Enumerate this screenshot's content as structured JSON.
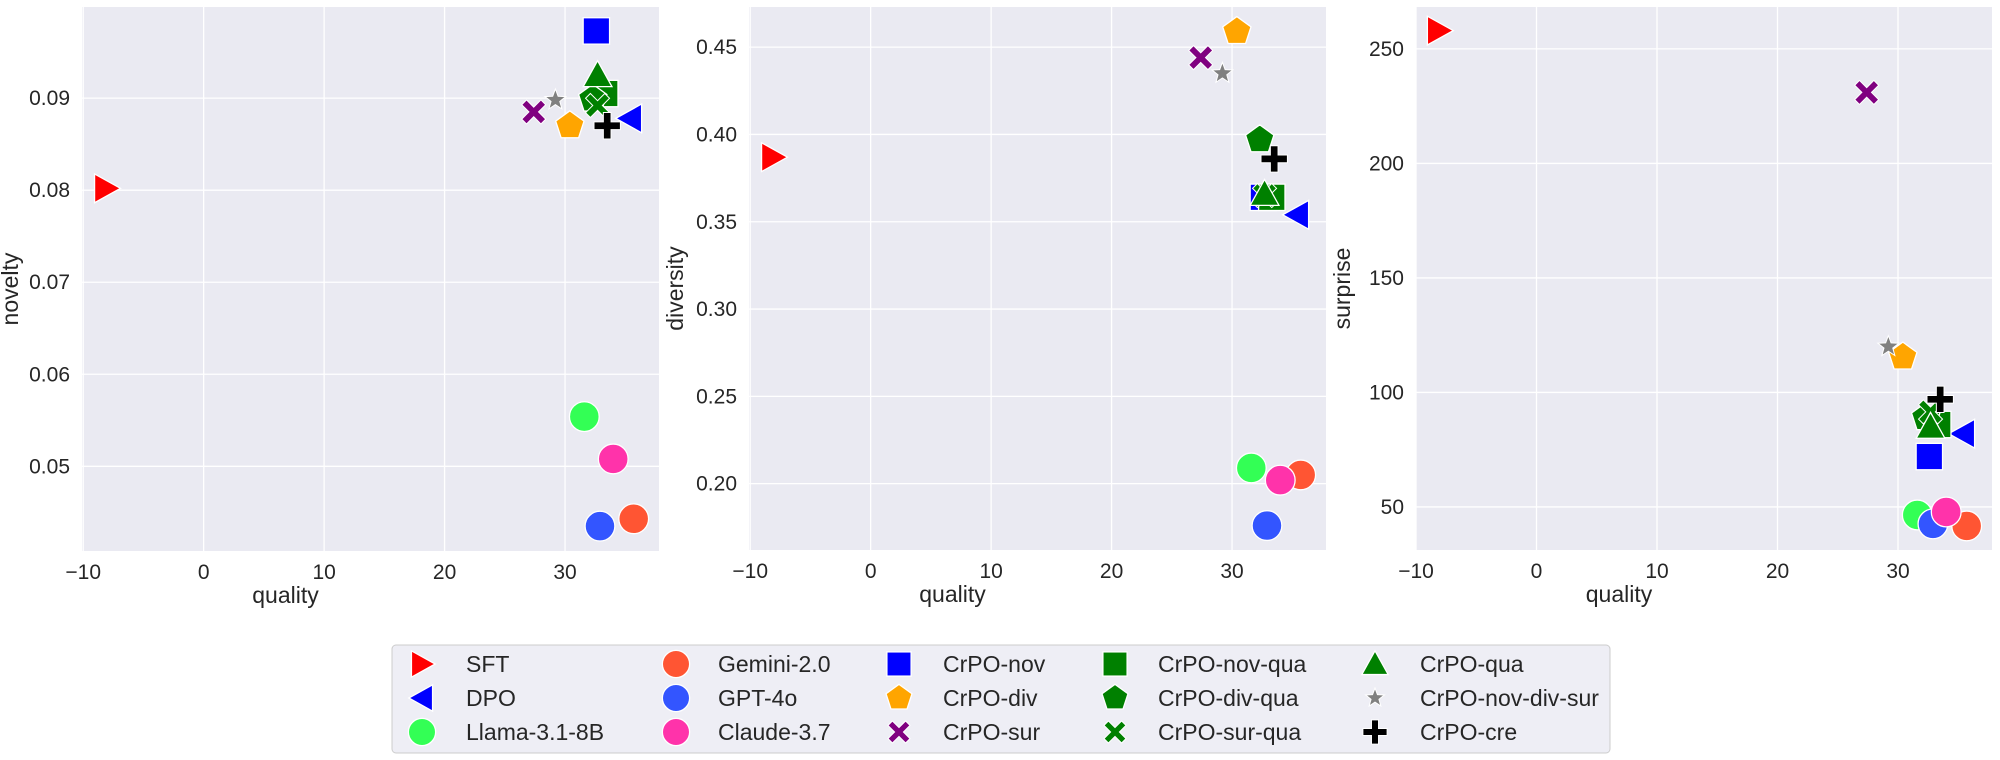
{
  "chart_data": {
    "type": "scatter",
    "legend": {
      "placement": "bottom-center",
      "columns": 5,
      "entries": [
        {
          "name": "SFT",
          "marker": "triangle-right",
          "color": "#ff0000"
        },
        {
          "name": "DPO",
          "marker": "triangle-left",
          "color": "#0000ff"
        },
        {
          "name": "Llama-3.1-8B",
          "marker": "circle",
          "color": "#33ff55"
        },
        {
          "name": "Gemini-2.0",
          "marker": "circle",
          "color": "#ff5533"
        },
        {
          "name": "GPT-4o",
          "marker": "circle",
          "color": "#3355ff"
        },
        {
          "name": "Claude-3.7",
          "marker": "circle",
          "color": "#ff33aa"
        },
        {
          "name": "CrPO-nov",
          "marker": "square",
          "color": "#0000ff"
        },
        {
          "name": "CrPO-div",
          "marker": "pentagon",
          "color": "#ffa500"
        },
        {
          "name": "CrPO-sur",
          "marker": "x",
          "color": "#800080"
        },
        {
          "name": "CrPO-nov-qua",
          "marker": "square",
          "color": "#008000"
        },
        {
          "name": "CrPO-div-qua",
          "marker": "pentagon",
          "color": "#008000"
        },
        {
          "name": "CrPO-sur-qua",
          "marker": "x",
          "color": "#008000"
        },
        {
          "name": "CrPO-qua",
          "marker": "triangle-up",
          "color": "#008000"
        },
        {
          "name": "CrPO-nov-div-sur",
          "marker": "star",
          "color": "#808080"
        },
        {
          "name": "CrPO-cre",
          "marker": "plus",
          "color": "#000000"
        }
      ]
    },
    "quality": {
      "SFT": -8.1,
      "DPO": 35.4,
      "Llama-3.1-8B": 31.6,
      "Gemini-2.0": 35.7,
      "GPT-4o": 32.9,
      "Claude-3.7": 34.0,
      "CrPO-nov": 32.6,
      "CrPO-div": 30.4,
      "CrPO-sur": 27.4,
      "CrPO-nov-qua": 33.3,
      "CrPO-div-qua": 32.3,
      "CrPO-sur-qua": 32.7,
      "CrPO-qua": 32.7,
      "CrPO-nov-div-sur": 29.2,
      "CrPO-cre": 33.5
    },
    "panels": [
      {
        "xlabel": "quality",
        "ylabel": "novelty",
        "xlim": [
          -10.1,
          37.8
        ],
        "ylim": [
          0.0408,
          0.0999
        ],
        "xticks": [
          -10,
          0,
          10,
          20,
          30
        ],
        "xtick_labels": [
          "−10",
          "0",
          "10",
          "20",
          "30"
        ],
        "yticks": [
          0.05,
          0.06,
          0.07,
          0.08,
          0.09
        ],
        "ytick_labels": [
          "0.05",
          "0.06",
          "0.07",
          "0.08",
          "0.09"
        ],
        "grid": true,
        "y": {
          "SFT": 0.0802,
          "DPO": 0.0878,
          "Llama-3.1-8B": 0.0554,
          "Gemini-2.0": 0.0443,
          "GPT-4o": 0.0435,
          "Claude-3.7": 0.0508,
          "CrPO-nov": 0.0973,
          "CrPO-div": 0.087,
          "CrPO-sur": 0.0885,
          "CrPO-nov-qua": 0.0905,
          "CrPO-div-qua": 0.0899,
          "CrPO-sur-qua": 0.0892,
          "CrPO-qua": 0.0925,
          "CrPO-nov-div-sur": 0.0898,
          "CrPO-cre": 0.087
        }
      },
      {
        "xlabel": "quality",
        "ylabel": "diversity",
        "xlim": [
          -10.1,
          37.8
        ],
        "ylim": [
          0.162,
          0.473
        ],
        "xticks": [
          -10,
          0,
          10,
          20,
          30
        ],
        "xtick_labels": [
          "−10",
          "0",
          "10",
          "20",
          "30"
        ],
        "yticks": [
          0.2,
          0.25,
          0.3,
          0.35,
          0.4,
          0.45
        ],
        "ytick_labels": [
          "0.20",
          "0.25",
          "0.30",
          "0.35",
          "0.40",
          "0.45"
        ],
        "grid": true,
        "y": {
          "SFT": 0.387,
          "DPO": 0.354,
          "Llama-3.1-8B": 0.209,
          "Gemini-2.0": 0.205,
          "GPT-4o": 0.176,
          "Claude-3.7": 0.202,
          "CrPO-nov": 0.364,
          "CrPO-div": 0.459,
          "CrPO-sur": 0.444,
          "CrPO-nov-qua": 0.364,
          "CrPO-div-qua": 0.397,
          "CrPO-sur-qua": 0.365,
          "CrPO-qua": 0.366,
          "CrPO-nov-div-sur": 0.435,
          "CrPO-cre": 0.386
        }
      },
      {
        "xlabel": "quality",
        "ylabel": "surprise",
        "xlim": [
          -10.0,
          37.8
        ],
        "ylim": [
          31.2,
          268.3
        ],
        "xticks": [
          -10,
          0,
          10,
          20,
          30
        ],
        "xtick_labels": [
          "−10",
          "0",
          "10",
          "20",
          "30"
        ],
        "yticks": [
          50,
          100,
          150,
          200,
          250
        ],
        "ytick_labels": [
          "50",
          "100",
          "150",
          "200",
          "250"
        ],
        "grid": true,
        "y": {
          "SFT": 258,
          "DPO": 82,
          "Llama-3.1-8B": 46.5,
          "Gemini-2.0": 41.7,
          "GPT-4o": 42.6,
          "Claude-3.7": 47.8,
          "CrPO-nov": 72,
          "CrPO-div": 115.5,
          "CrPO-sur": 231,
          "CrPO-nov-qua": 86,
          "CrPO-div-qua": 89,
          "CrPO-sur-qua": 91.5,
          "CrPO-qua": 85,
          "CrPO-nov-div-sur": 120,
          "CrPO-cre": 97
        }
      }
    ]
  }
}
